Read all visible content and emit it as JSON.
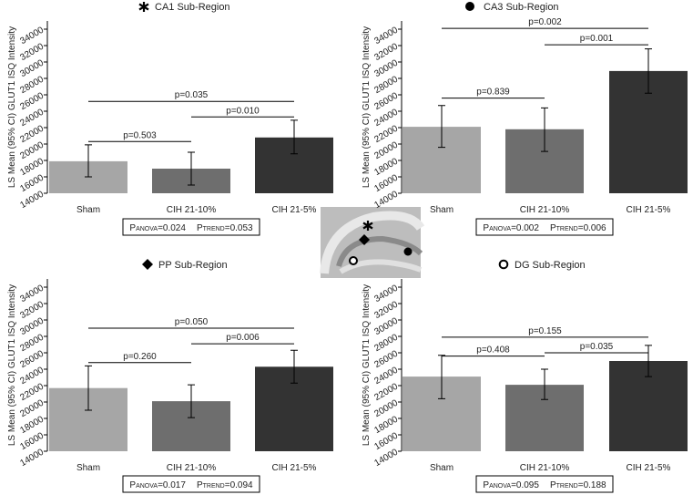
{
  "chart_data": [
    {
      "type": "bar",
      "title": "CA1 Sub-Region",
      "y_label": "LS Mean (95% CI) GLUT1 ISQ Intensity",
      "categories": [
        "Sham",
        "CIH 21-10%",
        "CIH 21-5%"
      ],
      "values": [
        17900,
        17000,
        20800
      ],
      "error_low": [
        16000,
        15000,
        18800
      ],
      "error_high": [
        19900,
        19000,
        22900
      ],
      "colors": [
        "#a6a6a6",
        "#6e6e6e",
        "#333333"
      ],
      "ylim": [
        14000,
        35000
      ],
      "yticks": [
        14000,
        16000,
        18000,
        20000,
        22000,
        24000,
        26000,
        28000,
        30000,
        32000,
        34000
      ],
      "brackets": [
        {
          "from": 0,
          "to": 1,
          "y": 20300,
          "label": "p=0.503"
        },
        {
          "from": 0,
          "to": 2,
          "y": 25200,
          "label": "p=0.035"
        },
        {
          "from": 1,
          "to": 2,
          "y": 23300,
          "label": "p=0.010"
        }
      ],
      "stats": [
        {
          "symbol": "P",
          "sub": "ANOVA",
          "text": "=0.024"
        },
        {
          "symbol": "P",
          "sub": "TREND",
          "text": "=0.053"
        }
      ]
    },
    {
      "type": "bar",
      "title": "CA3 Sub-Region",
      "y_label": "LS Mean (95% CI) GLUT1 ISQ Intensity",
      "categories": [
        "Sham",
        "CIH 21-10%",
        "CIH 21-5%"
      ],
      "values": [
        22100,
        21800,
        28900
      ],
      "error_low": [
        19600,
        19100,
        26200
      ],
      "error_high": [
        24700,
        24400,
        31600
      ],
      "colors": [
        "#a6a6a6",
        "#6e6e6e",
        "#333333"
      ],
      "ylim": [
        14000,
        35000
      ],
      "yticks": [
        14000,
        16000,
        18000,
        20000,
        22000,
        24000,
        26000,
        28000,
        30000,
        32000,
        34000
      ],
      "brackets": [
        {
          "from": 0,
          "to": 1,
          "y": 25600,
          "label": "p=0.839"
        },
        {
          "from": 0,
          "to": 2,
          "y": 34100,
          "label": "p=0.002"
        },
        {
          "from": 1,
          "to": 2,
          "y": 32100,
          "label": "p=0.001"
        }
      ],
      "stats": [
        {
          "symbol": "P",
          "sub": "ANOVA",
          "text": "=0.002"
        },
        {
          "symbol": "P",
          "sub": "TREND",
          "text": "=0.006"
        }
      ]
    },
    {
      "type": "bar",
      "title": "PP Sub-Region",
      "y_label": "LS Mean (95% CI) GLUT1 ISQ Intensity",
      "categories": [
        "Sham",
        "CIH 21-10%",
        "CIH 21-5%"
      ],
      "values": [
        21700,
        20100,
        24300
      ],
      "error_low": [
        19000,
        18100,
        22300
      ],
      "error_high": [
        24400,
        22100,
        26300
      ],
      "colors": [
        "#a6a6a6",
        "#6e6e6e",
        "#333333"
      ],
      "ylim": [
        14000,
        35000
      ],
      "yticks": [
        14000,
        16000,
        18000,
        20000,
        22000,
        24000,
        26000,
        28000,
        30000,
        32000,
        34000
      ],
      "brackets": [
        {
          "from": 0,
          "to": 1,
          "y": 24800,
          "label": "p=0.260"
        },
        {
          "from": 0,
          "to": 2,
          "y": 29000,
          "label": "p=0.050"
        },
        {
          "from": 1,
          "to": 2,
          "y": 27100,
          "label": "p=0.006"
        }
      ],
      "stats": [
        {
          "symbol": "P",
          "sub": "ANOVA",
          "text": "=0.017"
        },
        {
          "symbol": "P",
          "sub": "TREND",
          "text": "=0.094"
        }
      ]
    },
    {
      "type": "bar",
      "title": "DG Sub-Region",
      "y_label": "LS Mean (95% CI) GLUT1 ISQ Intensity",
      "categories": [
        "Sham",
        "CIH 21-10%",
        "CIH 21-5%"
      ],
      "values": [
        23100,
        22100,
        25000
      ],
      "error_low": [
        20400,
        20300,
        23100
      ],
      "error_high": [
        25700,
        24000,
        26900
      ],
      "colors": [
        "#a6a6a6",
        "#6e6e6e",
        "#333333"
      ],
      "ylim": [
        14000,
        35000
      ],
      "yticks": [
        14000,
        16000,
        18000,
        20000,
        22000,
        24000,
        26000,
        28000,
        30000,
        32000,
        34000
      ],
      "brackets": [
        {
          "from": 0,
          "to": 1,
          "y": 25600,
          "label": "p=0.408"
        },
        {
          "from": 0,
          "to": 2,
          "y": 27900,
          "label": "p=0.155"
        },
        {
          "from": 1,
          "to": 2,
          "y": 26000,
          "label": "p=0.035"
        }
      ],
      "stats": [
        {
          "symbol": "P",
          "sub": "ANOVA",
          "text": "=0.095"
        },
        {
          "symbol": "P",
          "sub": "TREND",
          "text": "=0.188"
        }
      ]
    }
  ]
}
